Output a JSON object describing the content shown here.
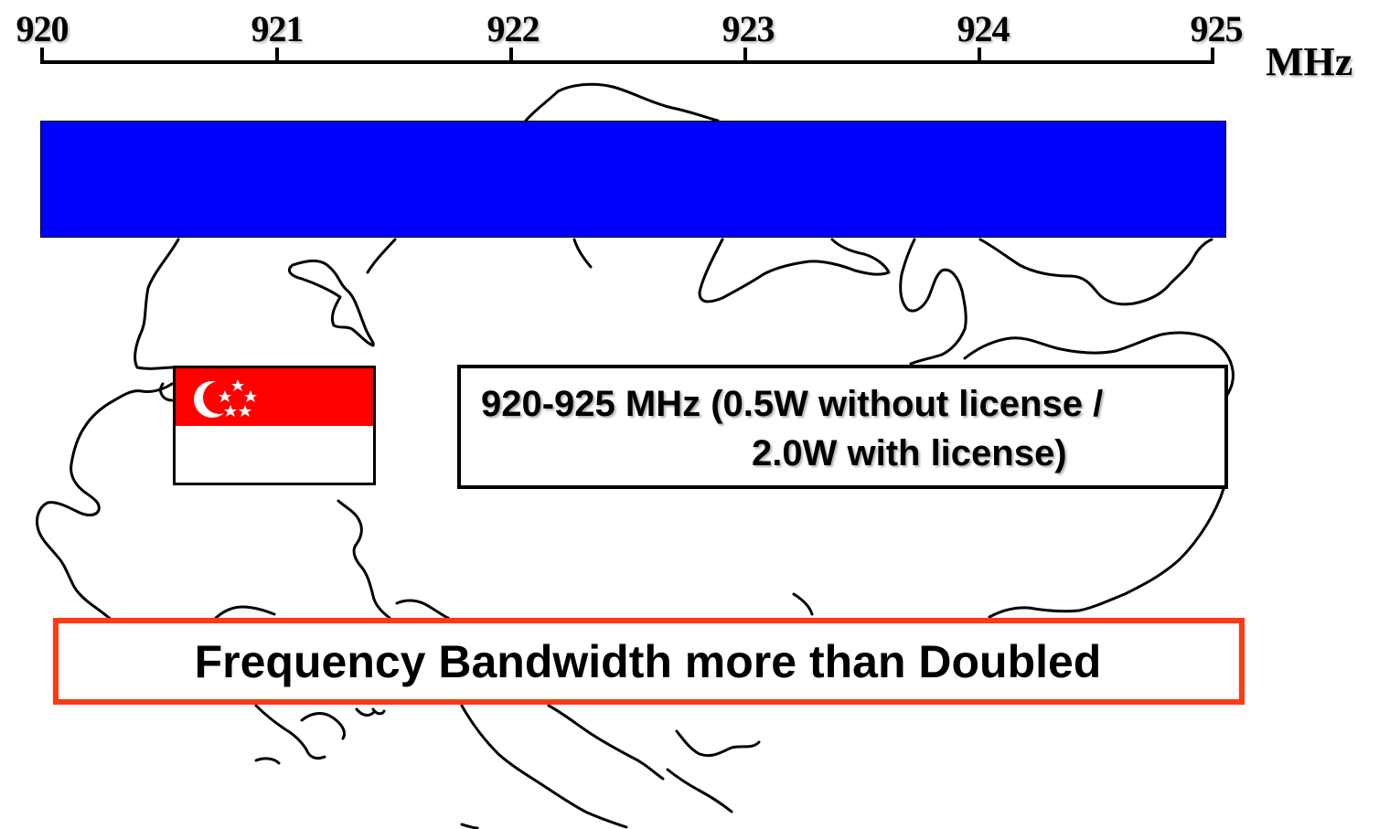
{
  "axis": {
    "ticks": [
      "920",
      "921",
      "922",
      "923",
      "924",
      "925"
    ],
    "unit": "MHz"
  },
  "info": {
    "line1": "920-925 MHz (0.5W without license /",
    "line2": "2.0W with license)"
  },
  "headline": "Frequency Bandwidth more than Doubled",
  "colors": {
    "band": "#0000ff",
    "headline_border": "#ff3a12",
    "flag_red": "#ff0000"
  }
}
